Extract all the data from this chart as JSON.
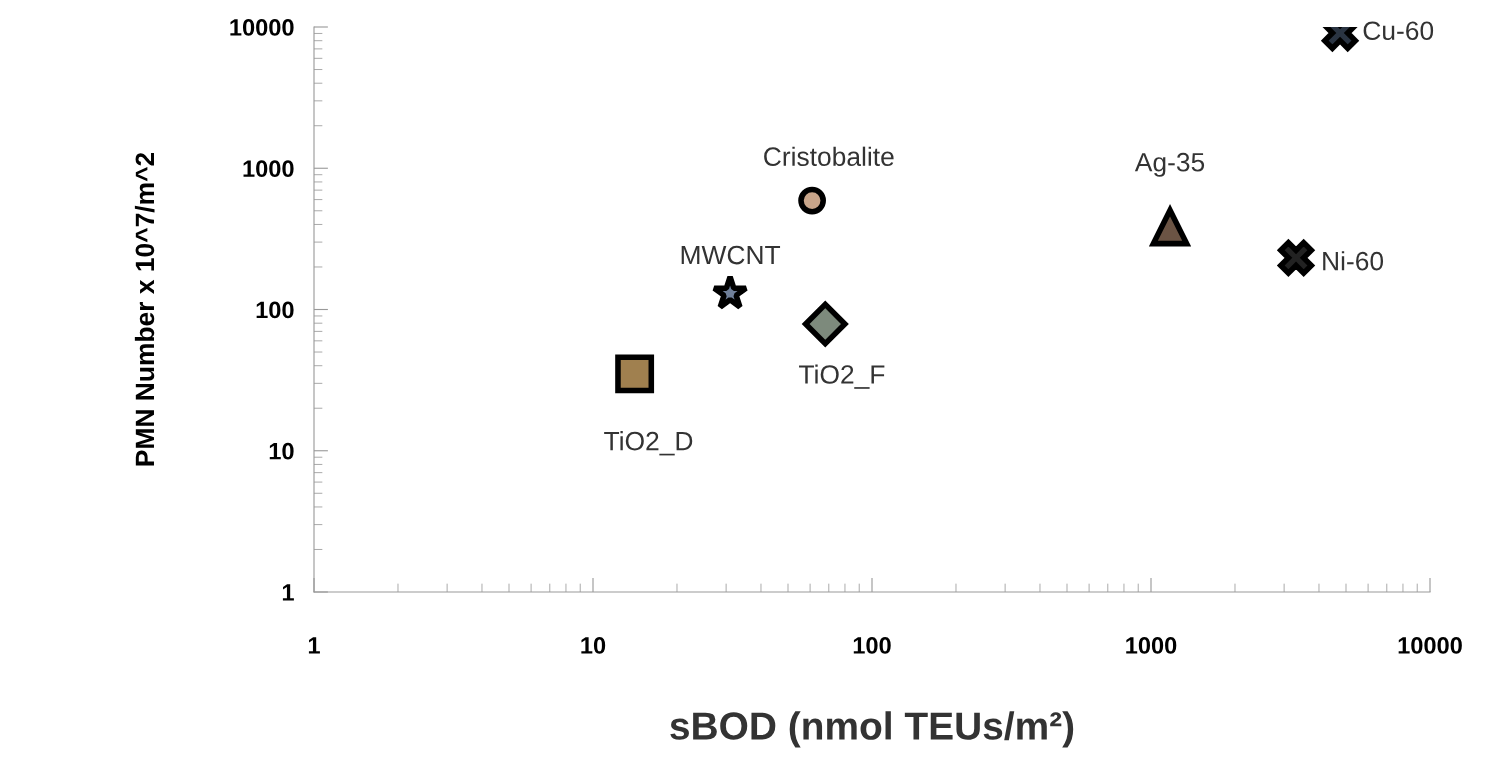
{
  "chart_data": {
    "type": "scatter",
    "xlabel": "sBOD (nmol TEUs/m²)",
    "ylabel": "PMN Number x 10^7/m^2",
    "log": "xy",
    "grid": false,
    "legend": false,
    "xlim": [
      1,
      10000
    ],
    "xticks": [
      1,
      10,
      100,
      1000,
      10000
    ],
    "ylim": [
      1,
      10000
    ],
    "yticks": [
      1,
      10,
      100,
      1000,
      10000
    ],
    "series": [
      {
        "name": "TiO2_D",
        "color": "#a0804f",
        "marker": "square",
        "x": [
          14.1
        ],
        "values": [
          35
        ]
      },
      {
        "name": "MWCNT",
        "color": "#6f7f99",
        "marker": "star",
        "x": [
          31
        ],
        "values": [
          130
        ]
      },
      {
        "name": "Cristobalite",
        "color": "#c8a58a",
        "marker": "circle",
        "x": [
          61
        ],
        "values": [
          590
        ]
      },
      {
        "name": "TiO2_F",
        "color": "#7d8a7c",
        "marker": "diamond",
        "x": [
          68
        ],
        "values": [
          79
        ]
      },
      {
        "name": "Ag-35",
        "color": "#6b5444",
        "marker": "triangle",
        "x": [
          1170
        ],
        "values": [
          384
        ]
      },
      {
        "name": "Ni-60",
        "color": "#222222",
        "marker": "cross",
        "x": [
          3310
        ],
        "values": [
          232
        ]
      },
      {
        "name": "Cu-60",
        "color": "#2a3442",
        "marker": "cross",
        "x": [
          4760
        ],
        "values": [
          9070
        ]
      }
    ]
  }
}
